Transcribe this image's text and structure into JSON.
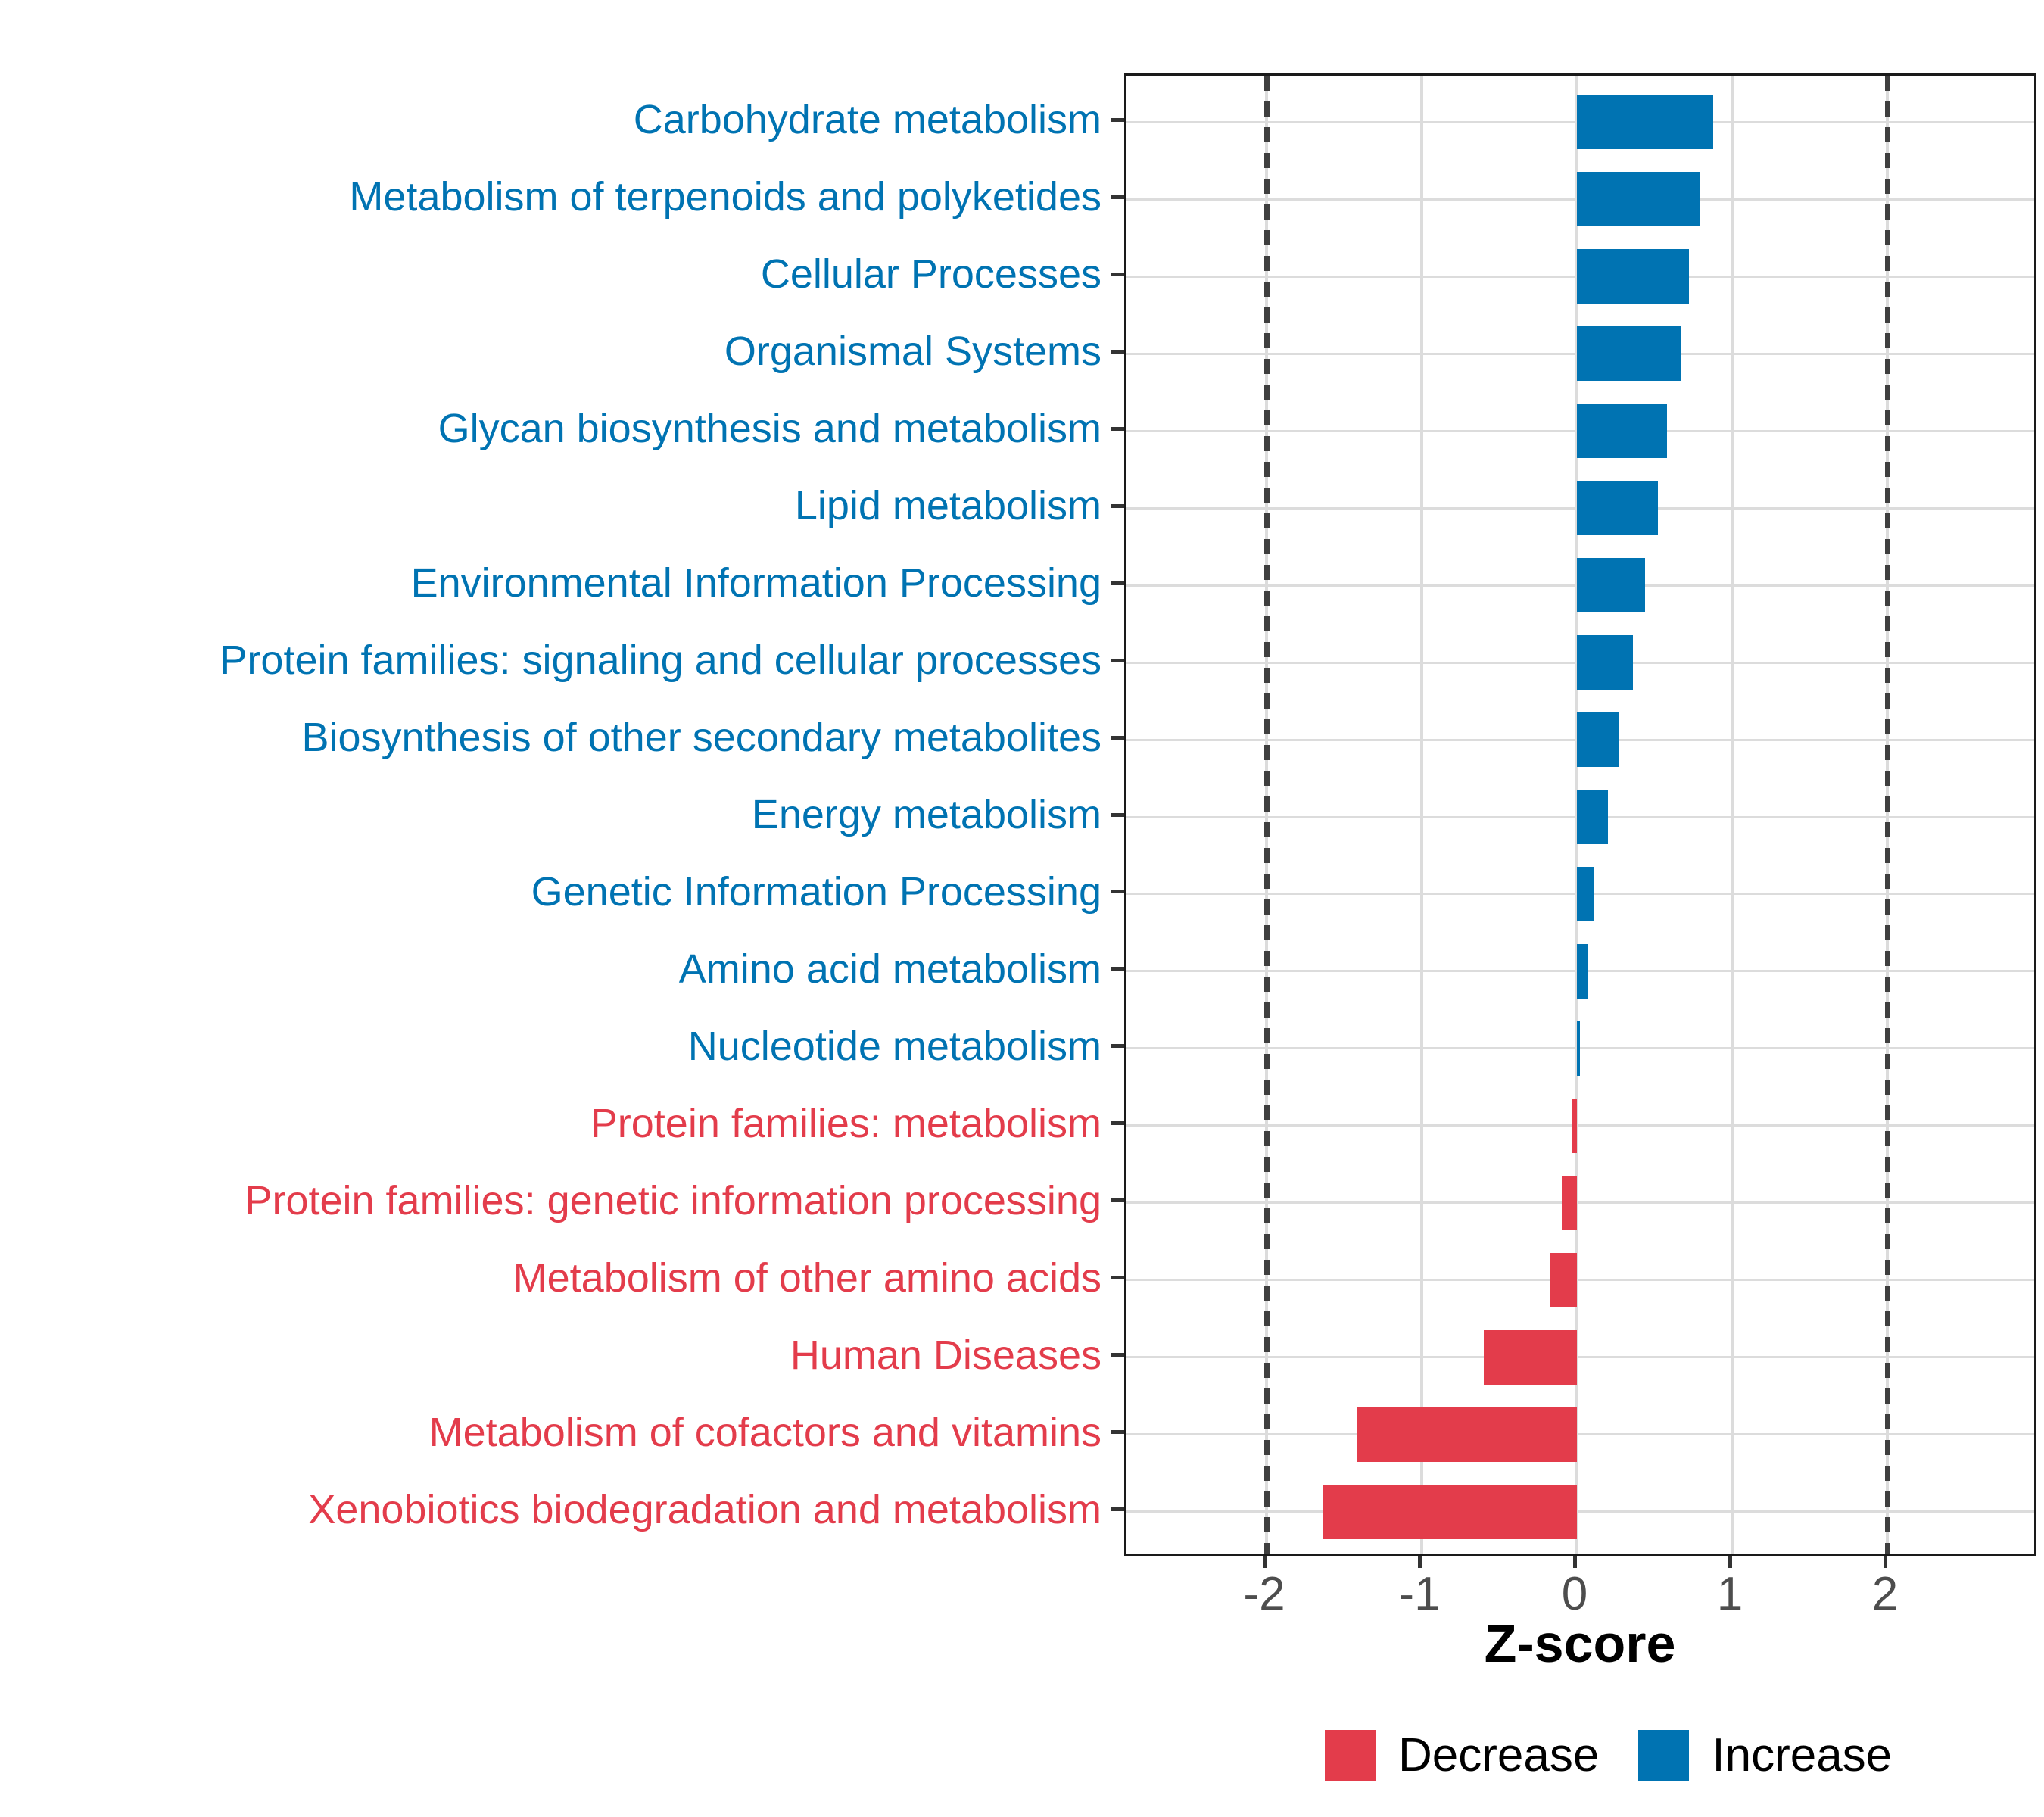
{
  "chart_data": {
    "type": "bar",
    "orientation": "horizontal",
    "title": "",
    "xlabel": "Z-score",
    "ylabel": "",
    "xticks": [
      -2,
      -1,
      0,
      1,
      2
    ],
    "xlim": [
      -2.9,
      3.0
    ],
    "grid": true,
    "dashed_guides": [
      -2,
      2
    ],
    "legend_position": "bottom",
    "categories": [
      "Carbohydrate metabolism",
      "Metabolism of terpenoids and polyketides",
      "Cellular Processes",
      "Organismal Systems",
      "Glycan biosynthesis and metabolism",
      "Lipid metabolism",
      "Environmental Information Processing",
      "Protein families: signaling and cellular processes",
      "Biosynthesis of other secondary metabolites",
      "Energy metabolism",
      "Genetic Information Processing",
      "Amino acid metabolism",
      "Nucleotide metabolism",
      "Protein families: metabolism",
      "Protein families: genetic information processing",
      "Metabolism of other amino acids",
      "Human Diseases",
      "Metabolism of cofactors and vitamins",
      "Xenobiotics biodegradation and metabolism"
    ],
    "values": [
      0.88,
      0.79,
      0.72,
      0.67,
      0.58,
      0.52,
      0.44,
      0.36,
      0.27,
      0.2,
      0.11,
      0.07,
      0.02,
      -0.03,
      -0.1,
      -0.17,
      -0.6,
      -1.42,
      -1.64
    ]
  },
  "legend": {
    "items": [
      {
        "label": "Decrease",
        "color": "#E33C4B"
      },
      {
        "label": "Increase",
        "color": "#0073B2"
      }
    ]
  },
  "colors": {
    "increase": "#0073B2",
    "decrease": "#E33C4B",
    "gridline": "#DCDCDC",
    "dashed_guide": "#3F3F3F",
    "axis_text": "#4D4D4D",
    "panel_border": "#1A1A1A",
    "background": "#FFFFFF"
  }
}
